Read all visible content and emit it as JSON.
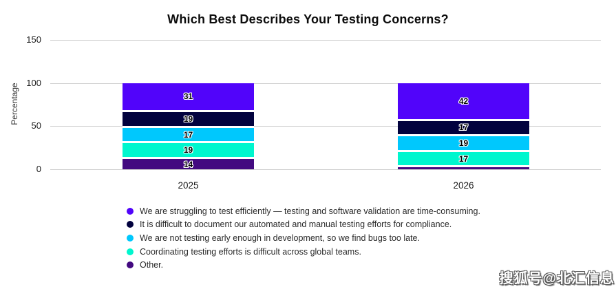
{
  "watermark": "搜狐号@北汇信息",
  "chart_data": {
    "type": "bar",
    "stacked": true,
    "title": "Which Best Describes Your Testing Concerns?",
    "xlabel": "",
    "ylabel": "Percentage",
    "ylim": [
      0,
      150
    ],
    "yticks": [
      0,
      50,
      100,
      150
    ],
    "grid": true,
    "legend_position": "bottom-left",
    "categories": [
      "2025",
      "2026"
    ],
    "series": [
      {
        "name": "We are struggling to test efficiently — testing and software validation are time-consuming.",
        "color": "#5104FA",
        "values": [
          31,
          42
        ],
        "labels": [
          "31",
          "42"
        ]
      },
      {
        "name": "It is difficult to document our automated and manual testing efforts for compliance.",
        "color": "#02023E",
        "values": [
          19,
          17
        ],
        "labels": [
          "19",
          "17"
        ]
      },
      {
        "name": "We are not testing early enough in development, so we find bugs too late.",
        "color": "#00C8FD",
        "values": [
          17,
          19
        ],
        "labels": [
          "17",
          "19"
        ]
      },
      {
        "name": "Coordinating testing efforts is difficult across global teams.",
        "color": "#00F6CE",
        "values": [
          19,
          17
        ],
        "labels": [
          "19",
          "17"
        ]
      },
      {
        "name": "Other.",
        "color": "#430A80",
        "values": [
          14,
          5
        ],
        "labels": [
          "14",
          ""
        ]
      }
    ]
  }
}
